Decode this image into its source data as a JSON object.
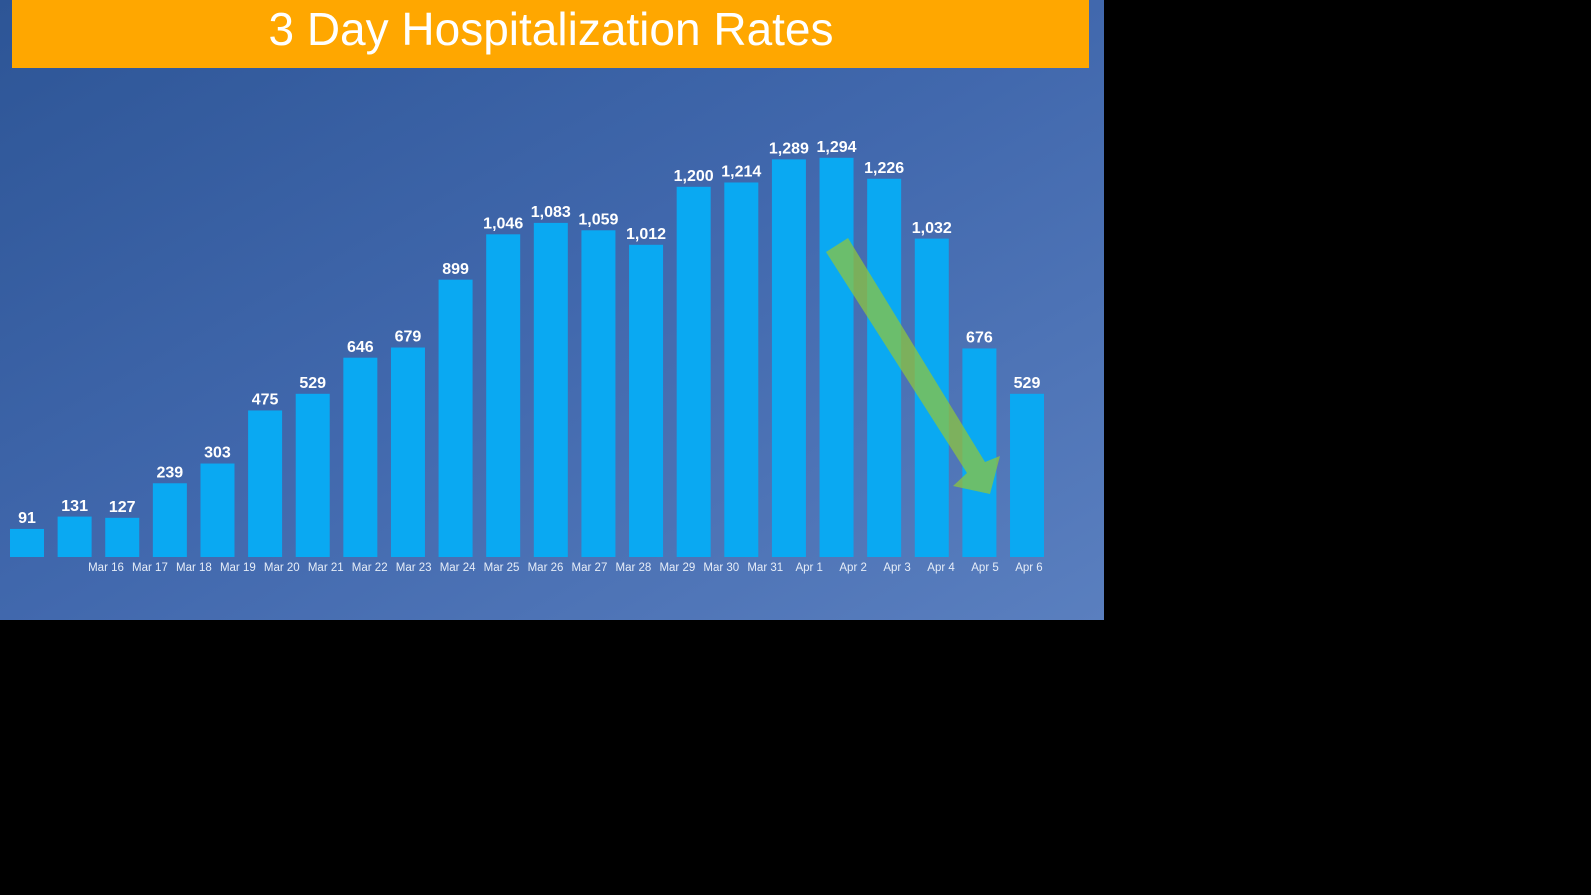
{
  "chart_data": {
    "type": "bar",
    "title": "3 Day Hospitalization Rates",
    "categories": [
      "Mar 16",
      "Mar 17",
      "Mar 18",
      "Mar 19",
      "Mar 20",
      "Mar 21",
      "Mar 22",
      "Mar 23",
      "Mar 24",
      "Mar 25",
      "Mar 26",
      "Mar 27",
      "Mar 28",
      "Mar 29",
      "Mar 30",
      "Mar 31",
      "Apr 1",
      "Apr 2",
      "Apr 3",
      "Apr 4",
      "Apr 5",
      "Apr 6"
    ],
    "values": [
      91,
      131,
      127,
      239,
      303,
      475,
      529,
      646,
      679,
      899,
      1046,
      1083,
      1059,
      1012,
      1200,
      1214,
      1289,
      1294,
      1226,
      1032,
      676,
      529
    ],
    "value_labels": [
      "91",
      "131",
      "127",
      "239",
      "303",
      "475",
      "529",
      "646",
      "679",
      "899",
      "1,046",
      "1,083",
      "1,059",
      "1,012",
      "1,200",
      "1,214",
      "1,289",
      "1,294",
      "1,226",
      "1,032",
      "676",
      "529"
    ],
    "color": "#0aa9f2"
  }
}
